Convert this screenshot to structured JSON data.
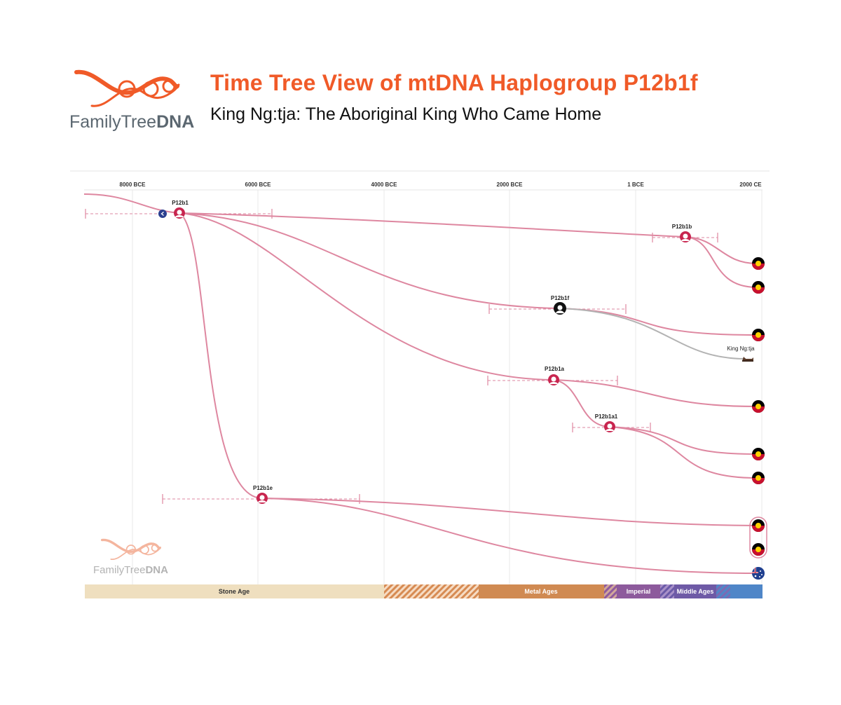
{
  "header": {
    "title": "Time Tree View of mtDNA Haplogroup P12b1f",
    "subtitle": "King Ng:tja: The Aboriginal King Who Came Home"
  },
  "logo": {
    "text_light": "FamilyTree",
    "text_bold": "DNA",
    "colors": {
      "helix": "#f05a28",
      "text": "#5b6770",
      "watermark_helix": "#f4b59e",
      "watermark_text": "#b3b3b3"
    }
  },
  "axis": {
    "ticks": [
      "8000 BCE",
      "6000 BCE",
      "4000 BCE",
      "2000 BCE",
      "1 BCE",
      "2000 CE"
    ]
  },
  "nodes": [
    {
      "label": "P12b1",
      "year": -6900
    },
    {
      "label": "P12b1b",
      "year": 800
    },
    {
      "label": "P12b1f",
      "year": -1200
    },
    {
      "label": "P12b1a",
      "year": -1300
    },
    {
      "label": "P12b1a1",
      "year": -400
    },
    {
      "label": "P12b1e",
      "year": -5950
    }
  ],
  "leaf_labels": {
    "king": "King Ng:tja"
  },
  "eras": [
    {
      "name": "Stone Age",
      "color": "#efdfbf",
      "text_color": "#333333"
    },
    {
      "name": "",
      "color": "#d78b53",
      "striped": true
    },
    {
      "name": "Metal Ages",
      "color": "#d08a52",
      "text_color": "#ffffff"
    },
    {
      "name": "",
      "color": "#8f5a9e",
      "striped": true
    },
    {
      "name": "Imperial",
      "color": "#8d5a9c",
      "text_color": "#ffffff"
    },
    {
      "name": "",
      "color": "#6a5aa8",
      "striped": true
    },
    {
      "name": "Middle Ages",
      "color": "#6e5aa6",
      "text_color": "#ffffff"
    },
    {
      "name": "",
      "color": "#4f86c8",
      "striped": true
    },
    {
      "name": "",
      "color": "#4f86c8"
    }
  ],
  "colors": {
    "branch": "#de87a0",
    "king_branch": "#b3b3b3",
    "node": "#c8254f",
    "grid": "#e5e5e5"
  }
}
